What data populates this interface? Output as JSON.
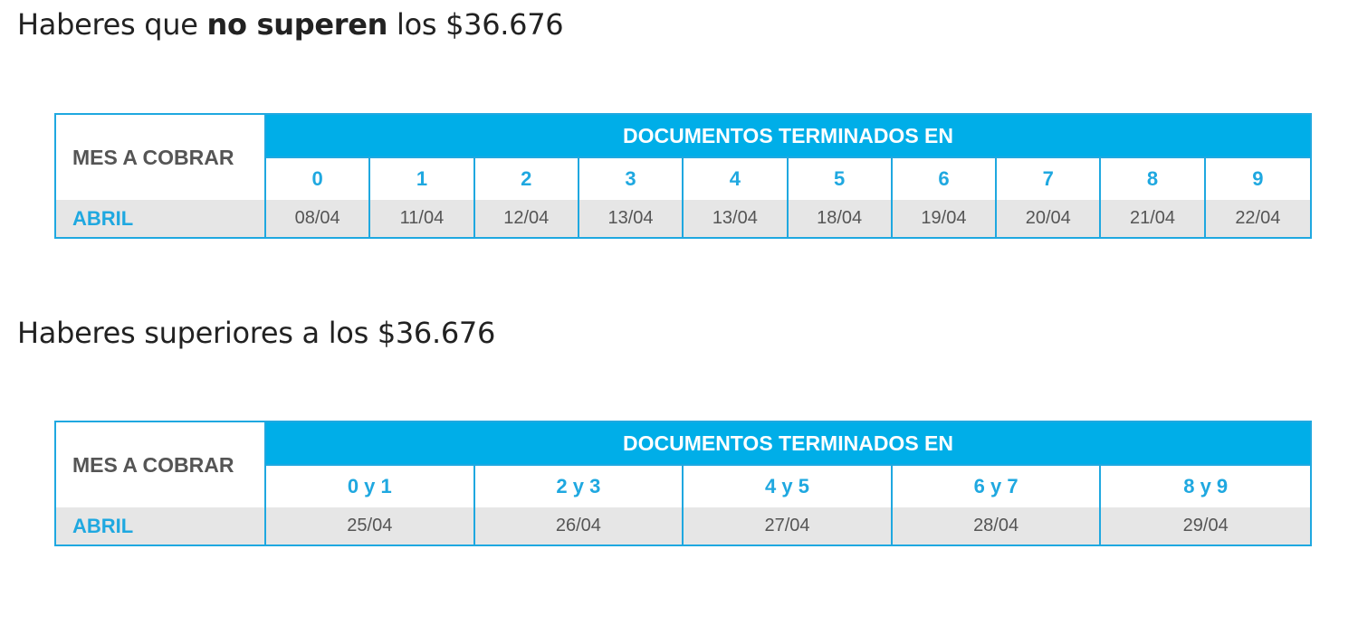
{
  "section1": {
    "title_pre": "Haberes que ",
    "title_bold": "no superen",
    "title_post": " los $36.676",
    "table": {
      "mes_header": "MES A COBRAR",
      "group_header": "DOCUMENTOS TERMINADOS EN",
      "month": "ABRIL",
      "columns": [
        "0",
        "1",
        "2",
        "3",
        "4",
        "5",
        "6",
        "7",
        "8",
        "9"
      ],
      "dates": [
        "08/04",
        "11/04",
        "12/04",
        "13/04",
        "13/04",
        "18/04",
        "19/04",
        "20/04",
        "21/04",
        "22/04"
      ]
    }
  },
  "section2": {
    "title": "Haberes superiores a los $36.676",
    "table": {
      "mes_header": "MES A COBRAR",
      "group_header": "DOCUMENTOS TERMINADOS EN",
      "month": "ABRIL",
      "columns": [
        "0 y 1",
        "2 y 3",
        "4 y 5",
        "6 y 7",
        "8 y 9"
      ],
      "dates": [
        "25/04",
        "26/04",
        "27/04",
        "28/04",
        "29/04"
      ]
    }
  },
  "colors": {
    "accent": "#00aee8",
    "row_bg": "#e6e6e6",
    "text": "#555555"
  }
}
